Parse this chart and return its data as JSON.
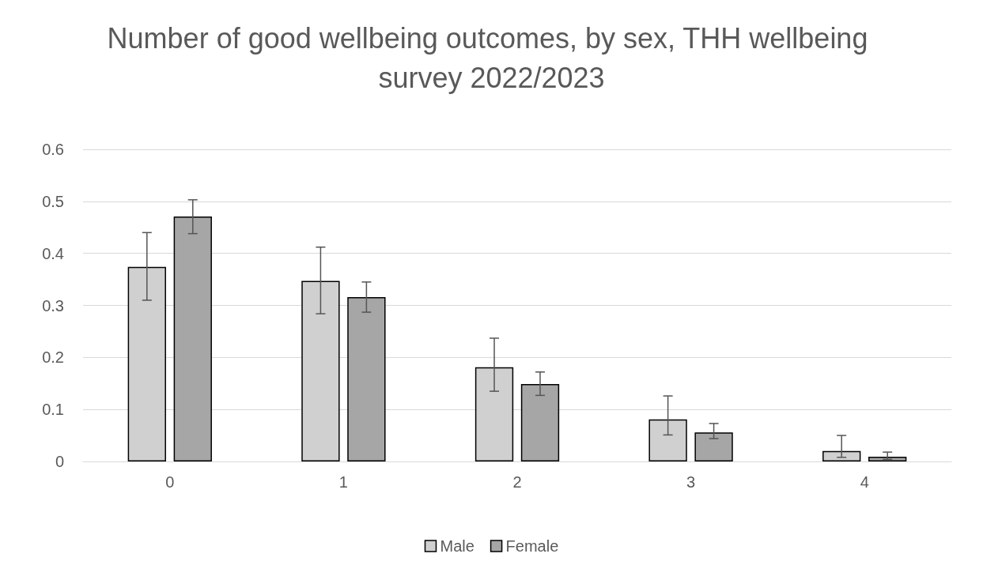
{
  "chart_data": {
    "type": "bar",
    "title": "Number of good wellbeing outcomes, by sex, THH wellbeing survey 2022/2023",
    "categories": [
      "0",
      "1",
      "2",
      "3",
      "4"
    ],
    "series": [
      {
        "name": "Male",
        "color": "#d0d0d0",
        "values": [
          0.374,
          0.347,
          0.181,
          0.081,
          0.02
        ],
        "errors": [
          [
            0.31,
            0.44
          ],
          [
            0.284,
            0.412
          ],
          [
            0.135,
            0.237
          ],
          [
            0.051,
            0.126
          ],
          [
            0.008,
            0.05
          ]
        ]
      },
      {
        "name": "Female",
        "color": "#a6a6a6",
        "values": [
          0.471,
          0.316,
          0.149,
          0.056,
          0.009
        ],
        "errors": [
          [
            0.438,
            0.503
          ],
          [
            0.287,
            0.345
          ],
          [
            0.127,
            0.172
          ],
          [
            0.044,
            0.073
          ],
          [
            0.004,
            0.018
          ]
        ]
      }
    ],
    "ylim": [
      0,
      0.6
    ],
    "yticks": [
      0,
      0.1,
      0.2,
      0.3,
      0.4,
      0.5,
      0.6
    ],
    "grid": "y",
    "legend": "bottom"
  }
}
